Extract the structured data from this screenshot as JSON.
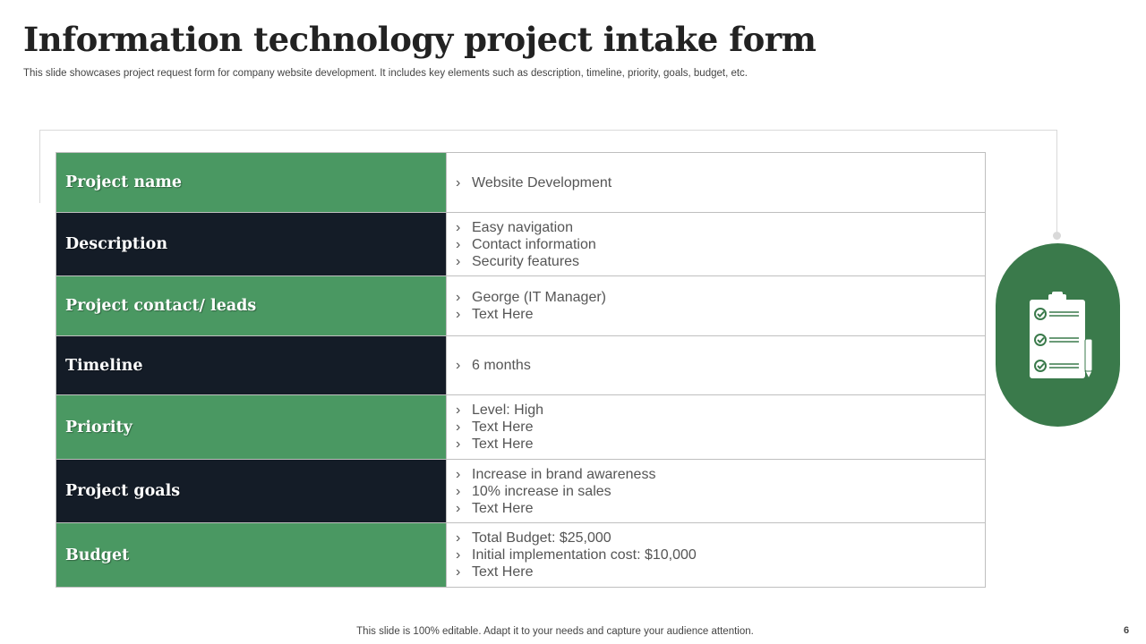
{
  "header": {
    "title": "Information technology project intake form",
    "subtitle": "This slide showcases project request form for company website development. It includes key elements such as description, timeline, priority, goals, budget, etc."
  },
  "bullet_glyph": "›",
  "form": {
    "rows": [
      {
        "label": "Project name",
        "values": [
          "Website Development"
        ]
      },
      {
        "label": "Description",
        "values": [
          "Easy navigation",
          "Contact information",
          "Security features"
        ]
      },
      {
        "label": "Project contact/ leads",
        "values": [
          "George (IT Manager)",
          "Text Here"
        ]
      },
      {
        "label": "Timeline",
        "values": [
          "6 months"
        ]
      },
      {
        "label": "Priority",
        "values": [
          "Level: High",
          "Text Here",
          "Text Here"
        ]
      },
      {
        "label": "Project goals",
        "values": [
          "Increase  in brand awareness",
          "10% increase in sales",
          "Text Here"
        ]
      },
      {
        "label": "Budget",
        "values": [
          "Total Budget: $25,000",
          "Initial implementation cost: $10,000",
          "Text Here"
        ]
      }
    ]
  },
  "colors": {
    "green": "#4a9862",
    "dark": "#141c27",
    "badge": "#3a7a4b"
  },
  "badge": {
    "icon": "clipboard-checklist-icon"
  },
  "footer": {
    "text": "This slide is 100% editable. Adapt it to your needs and capture your audience attention.",
    "page_number": "6"
  }
}
